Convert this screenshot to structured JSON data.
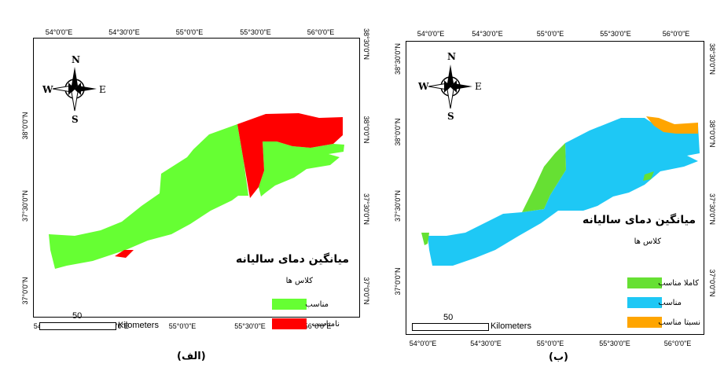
{
  "panels": [
    {
      "caption": "(الف)",
      "legend_title": "میانگین دمای سالیانه",
      "legend_subtitle": "کلاس ها",
      "classes": [
        {
          "label": "مناسب",
          "color": "#66ff33"
        },
        {
          "label": "نامناسب",
          "color": "#ff0000"
        }
      ],
      "x_ticks": [
        "54°0'0\"E",
        "54°30'0\"E",
        "55°0'0\"E",
        "55°30'0\"E",
        "56°0'0\"E"
      ],
      "y_ticks_left": [
        "38°0'0\"N",
        "37°30'0\"N",
        "37°0'0\"N"
      ],
      "y_ticks_right": [
        "38°30'0\"N",
        "38°0'0\"N",
        "37°30'0\"N",
        "37°0'0\"N"
      ],
      "scale_value": "50",
      "scale_unit": "Kilometers",
      "compass": {
        "n": "N",
        "s": "S",
        "e": "E",
        "w": "W"
      }
    },
    {
      "caption": "(ب)",
      "legend_title": "میانگین دمای سالیانه",
      "legend_subtitle": "کلاس ها",
      "classes": [
        {
          "label": "کاملا مناسب",
          "color": "#66e033"
        },
        {
          "label": "مناسب",
          "color": "#1ec8f5"
        },
        {
          "label": "نسبتا مناسب",
          "color": "#ffa500"
        }
      ],
      "x_ticks": [
        "54°0'0\"E",
        "54°30'0\"E",
        "55°0'0\"E",
        "55°30'0\"E",
        "56°0'0\"E"
      ],
      "y_ticks_left": [
        "38°30'0\"N",
        "38°0'0\"N",
        "37°30'0\"N",
        "37°0'0\"N"
      ],
      "y_ticks_right": [
        "38°30'0\"N",
        "38°0'0\"N",
        "37°30'0\"N",
        "37°0'0\"N"
      ],
      "scale_value": "50",
      "scale_unit": "Kilometers",
      "compass": {
        "n": "N",
        "s": "S",
        "e": "E",
        "w": "W"
      }
    }
  ]
}
